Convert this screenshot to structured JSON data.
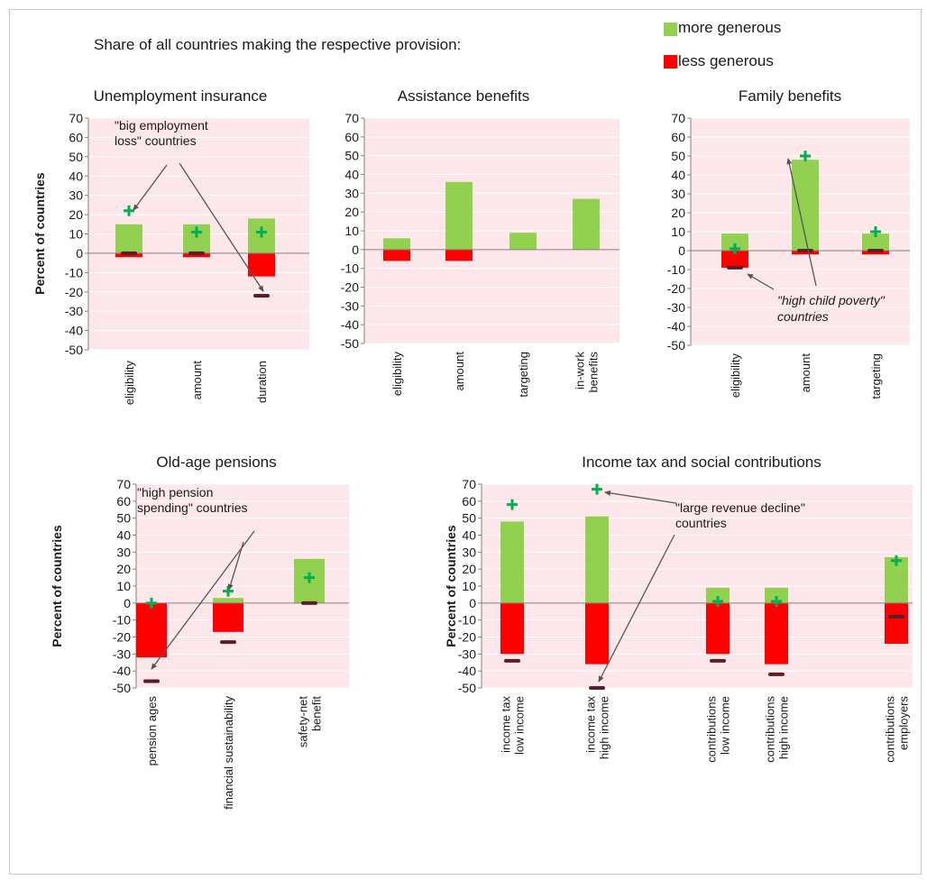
{
  "intro_text": "Share of all countries making the respective provision:",
  "legend": {
    "more": {
      "label": "more generous",
      "color": "#92d050"
    },
    "less": {
      "label": "less generous",
      "color": "#ff0000"
    }
  },
  "colors": {
    "plot_bg": "#fde7ea",
    "grid": "#ffffff",
    "marker_plus": "#00b050",
    "marker_minus": "#5a1f24",
    "axis": "#808080"
  },
  "chart_data": [
    {
      "type": "bar",
      "title": "Unemployment insurance",
      "ylabel": "Percent of countries",
      "ylim": [
        -50,
        70
      ],
      "yticks": [
        70,
        60,
        50,
        40,
        30,
        20,
        10,
        0,
        -10,
        -20,
        -30,
        -40,
        -50
      ],
      "categories": [
        "eligibility",
        "amount",
        "duration"
      ],
      "series": [
        {
          "name": "more generous",
          "values": [
            15,
            15,
            18
          ]
        },
        {
          "name": "less generous",
          "values": [
            -2,
            -2,
            -12
          ]
        }
      ],
      "subgroup_more": [
        22,
        11,
        11
      ],
      "subgroup_less": [
        0,
        0,
        -22
      ],
      "annotation": {
        "text": [
          "\"big employment",
          "loss\" countries"
        ]
      }
    },
    {
      "type": "bar",
      "title": "Assistance benefits",
      "ylabel": "",
      "ylim": [
        -50,
        70
      ],
      "yticks": [
        70,
        60,
        50,
        40,
        30,
        20,
        10,
        0,
        -10,
        -20,
        -30,
        -40,
        -50
      ],
      "categories": [
        "eligibility",
        "amount",
        "targeting",
        "in-work benefits"
      ],
      "series": [
        {
          "name": "more generous",
          "values": [
            6,
            36,
            9,
            27
          ]
        },
        {
          "name": "less generous",
          "values": [
            -6,
            -6,
            0,
            0
          ]
        }
      ]
    },
    {
      "type": "bar",
      "title": "Family benefits",
      "ylabel": "",
      "ylim": [
        -50,
        70
      ],
      "yticks": [
        70,
        60,
        50,
        40,
        30,
        20,
        10,
        0,
        -10,
        -20,
        -30,
        -40,
        -50
      ],
      "categories": [
        "eligibility",
        "amount",
        "targeting"
      ],
      "series": [
        {
          "name": "more generous",
          "values": [
            9,
            48,
            9
          ]
        },
        {
          "name": "less generous",
          "values": [
            -9,
            -2,
            -2
          ]
        }
      ],
      "subgroup_more": [
        1,
        50,
        10
      ],
      "subgroup_less": [
        -9,
        0,
        0
      ],
      "annotation": {
        "text": [
          "\"high child poverty\"",
          "countries"
        ]
      }
    },
    {
      "type": "bar",
      "title": "Old-age pensions",
      "ylabel": "Percent of countries",
      "ylim": [
        -50,
        70
      ],
      "yticks": [
        70,
        60,
        50,
        40,
        30,
        20,
        10,
        0,
        -10,
        -20,
        -30,
        -40,
        -50
      ],
      "categories": [
        "pension ages",
        "financial sustainability",
        "safety-net benefit"
      ],
      "series": [
        {
          "name": "more generous",
          "values": [
            0,
            3,
            26
          ]
        },
        {
          "name": "less generous",
          "values": [
            -32,
            -17,
            0
          ]
        }
      ],
      "subgroup_more": [
        0,
        7,
        15
      ],
      "subgroup_less": [
        -46,
        -23,
        0
      ],
      "annotation": {
        "text": [
          "\"high pension",
          "spending\" countries"
        ]
      }
    },
    {
      "type": "bar",
      "title": "Income tax and social contributions",
      "ylabel": "Percent of countries",
      "ylim": [
        -50,
        70
      ],
      "yticks": [
        70,
        60,
        50,
        40,
        30,
        20,
        10,
        0,
        -10,
        -20,
        -30,
        -40,
        -50
      ],
      "categories": [
        "income tax low income",
        "income tax high income",
        "contributions low income",
        "contributions high income",
        "contributions employers"
      ],
      "series": [
        {
          "name": "more generous",
          "values": [
            48,
            51,
            9,
            9,
            27
          ]
        },
        {
          "name": "less generous",
          "values": [
            -30,
            -36,
            -30,
            -36,
            -24
          ]
        }
      ],
      "subgroup_more": [
        58,
        67,
        1,
        1,
        25
      ],
      "subgroup_less": [
        -34,
        -50,
        -34,
        -42,
        -8
      ],
      "annotation": {
        "text": [
          "\"large revenue decline\"",
          "countries"
        ]
      }
    }
  ]
}
